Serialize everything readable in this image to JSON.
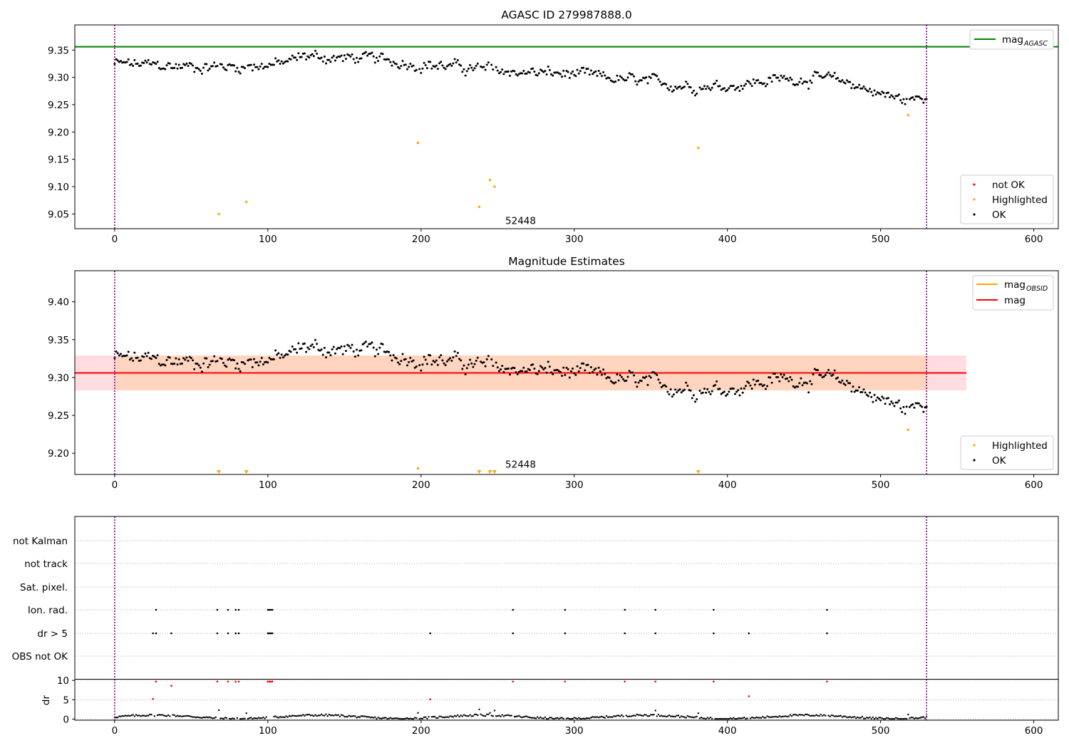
{
  "colors": {
    "ok": "#000000",
    "highlighted": "#ffa500",
    "not_ok": "#ff0000",
    "mag_agasc": "#008000",
    "mag": "#ff0000",
    "mag_obsid": "#ffa500",
    "obs_boundary": "#800080",
    "band_outer": "#ffdce0",
    "band_inner": "#ffd5bf",
    "grid": "#b0b0b0"
  },
  "chart_data": [
    {
      "type": "scatter",
      "title": "AGASC ID 279987888.0",
      "xlim": [
        -26,
        616
      ],
      "ylim": [
        9.023,
        9.396
      ],
      "xticks": [
        0,
        100,
        200,
        300,
        400,
        500,
        600
      ],
      "yticks": [
        9.05,
        9.1,
        9.15,
        9.2,
        9.25,
        9.3,
        9.35
      ],
      "ytick_labels": [
        "9.05",
        "9.10",
        "9.15",
        "9.20",
        "9.25",
        "9.30",
        "9.35"
      ],
      "hline": {
        "name": "mag_AGASC",
        "value": 9.356
      },
      "vlines": [
        0,
        530
      ],
      "annotation": {
        "text": "52448",
        "x": 265,
        "y": 9.03
      },
      "ok_trend": [
        [
          0,
          9.325
        ],
        [
          40,
          9.32
        ],
        [
          80,
          9.32
        ],
        [
          110,
          9.325
        ],
        [
          125,
          9.34
        ],
        [
          145,
          9.335
        ],
        [
          160,
          9.335
        ],
        [
          200,
          9.325
        ],
        [
          250,
          9.312
        ],
        [
          300,
          9.305
        ],
        [
          350,
          9.29
        ],
        [
          380,
          9.285
        ],
        [
          400,
          9.285
        ],
        [
          440,
          9.298
        ],
        [
          460,
          9.298
        ],
        [
          480,
          9.29
        ],
        [
          500,
          9.27
        ],
        [
          515,
          9.258
        ],
        [
          530,
          9.262
        ]
      ],
      "ok_scatter": 0.012,
      "highlighted_points": [
        [
          68,
          9.05
        ],
        [
          86,
          9.072
        ],
        [
          198,
          9.18
        ],
        [
          238,
          9.063
        ],
        [
          245,
          9.112
        ],
        [
          248,
          9.1
        ],
        [
          381,
          9.171
        ],
        [
          518,
          9.231
        ]
      ],
      "legend_upper": [
        "mag_AGASC"
      ],
      "legend_lower": [
        "not OK",
        "Highlighted",
        "OK"
      ]
    },
    {
      "type": "scatter",
      "title": "Magnitude Estimates",
      "xlim": [
        -26,
        616
      ],
      "ylim": [
        9.172,
        9.441
      ],
      "xticks": [
        0,
        100,
        200,
        300,
        400,
        500,
        600
      ],
      "yticks": [
        9.2,
        9.25,
        9.3,
        9.35,
        9.4
      ],
      "ytick_labels": [
        "9.20",
        "9.25",
        "9.30",
        "9.35",
        "9.40"
      ],
      "mag_line": {
        "name": "mag",
        "value": 9.306,
        "x": [
          -26,
          556
        ]
      },
      "band_outer": [
        9.283,
        9.329
      ],
      "band_inner": {
        "x": [
          0,
          530
        ],
        "y": [
          9.283,
          9.329
        ]
      },
      "vlines": [
        0,
        530
      ],
      "annotation": {
        "text": "52448",
        "x": 265,
        "y": 9.18
      },
      "highlighted_points": [
        [
          198,
          9.18
        ],
        [
          518,
          9.231
        ]
      ],
      "clipped_markers_x": [
        68,
        86,
        238,
        245,
        248,
        381
      ],
      "legend_upper": [
        "mag_OBSID",
        "mag"
      ],
      "legend_lower": [
        "Highlighted",
        "OK"
      ]
    },
    {
      "type": "scatter",
      "title": "",
      "xlim": [
        -26,
        616
      ],
      "categories": [
        "not Kalman",
        "not track",
        "Sat. pixel.",
        "Ion. rad.",
        "dr > 5",
        "OBS not OK"
      ],
      "ion_rad_x": [
        27,
        67,
        74,
        79,
        81,
        100,
        101,
        102,
        103,
        260,
        294,
        333,
        353,
        391,
        465
      ],
      "dr5_x": [
        25,
        27,
        37,
        67,
        74,
        79,
        81,
        100,
        101,
        102,
        103,
        206,
        260,
        294,
        333,
        353,
        391,
        414,
        465
      ],
      "vlines": [
        0,
        530
      ]
    },
    {
      "type": "scatter",
      "title": "",
      "ylabel": "dr",
      "xlim": [
        -26,
        616
      ],
      "ylim": [
        -0.3,
        10.3
      ],
      "xticks": [
        0,
        100,
        200,
        300,
        400,
        500,
        600
      ],
      "yticks": [
        0,
        5,
        10
      ],
      "ytick_labels": [
        "0",
        "5",
        "10"
      ],
      "not_ok_points": [
        [
          25,
          5.2
        ],
        [
          27,
          9.7
        ],
        [
          37,
          8.6
        ],
        [
          67,
          9.7
        ],
        [
          74,
          9.7
        ],
        [
          79,
          9.7
        ],
        [
          81,
          9.7
        ],
        [
          100,
          9.7
        ],
        [
          101,
          9.7
        ],
        [
          102,
          9.7
        ],
        [
          103,
          9.7
        ],
        [
          206,
          5.1
        ],
        [
          260,
          9.7
        ],
        [
          294,
          9.7
        ],
        [
          333,
          9.7
        ],
        [
          353,
          9.7
        ],
        [
          391,
          9.7
        ],
        [
          414,
          5.9
        ],
        [
          465,
          9.7
        ]
      ],
      "ok_high_points": [
        [
          68,
          2.3
        ],
        [
          86,
          1.5
        ],
        [
          198,
          1.6
        ],
        [
          238,
          2.5
        ],
        [
          245,
          1.6
        ],
        [
          248,
          2.2
        ],
        [
          353,
          2.2
        ],
        [
          381,
          1.5
        ],
        [
          518,
          1.2
        ]
      ],
      "vlines": [
        0,
        530
      ]
    }
  ]
}
